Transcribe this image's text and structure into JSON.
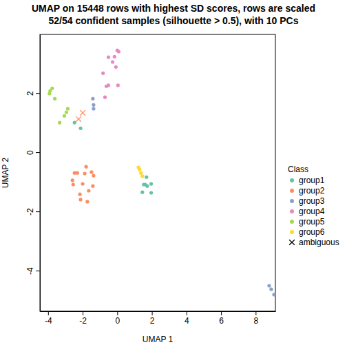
{
  "chart_data": {
    "type": "scatter",
    "title": "UMAP on 15448 rows with highest SD scores, rows are scaled",
    "subtitle": "52/54 confident samples (silhouette > 0.5), with 10 PCs",
    "x_label": "UMAP 1",
    "y_label": "UMAP 2",
    "legend_title": "Class",
    "legend": "right",
    "xlim": [
      -4.47,
      9.14
    ],
    "ylim": [
      -5.37,
      3.98
    ],
    "xticks": [
      -4,
      -2,
      0,
      2,
      4,
      6,
      8
    ],
    "yticks": [
      -4,
      -2,
      0,
      2
    ],
    "series": [
      {
        "name": "group1",
        "color": "#66C2A5",
        "marker": "circle",
        "x": [
          -2.47,
          -2.12,
          1.45,
          1.96,
          1.61,
          1.73,
          1.96,
          1.69,
          1.53
        ],
        "values": [
          1.0,
          0.81,
          -1.35,
          -1.37,
          -1.09,
          -1.14,
          -1.07,
          -0.84,
          -1.09
        ]
      },
      {
        "name": "group2",
        "color": "#FC8D62",
        "marker": "circle",
        "x": [
          -1.8,
          -1.88,
          -1.49,
          -1.37,
          -2.47,
          -2.31,
          -2.55,
          -2.59,
          -2.0,
          -1.41,
          -2.16,
          -1.65,
          -2.12,
          -1.73
        ],
        "values": [
          -0.49,
          -0.72,
          -0.67,
          -0.79,
          -0.7,
          -0.7,
          -1.09,
          -0.95,
          -1.07,
          -1.14,
          -1.42,
          -1.3,
          -1.6,
          -1.67
        ]
      },
      {
        "name": "group3",
        "color": "#8DA0CB",
        "marker": "circle",
        "x": [
          -1.41,
          -1.37,
          -1.37,
          8.78,
          8.9,
          9.06
        ],
        "values": [
          1.81,
          1.6,
          1.47,
          -4.51,
          -4.63,
          -4.81
        ]
      },
      {
        "name": "group4",
        "color": "#E78AC3",
        "marker": "circle",
        "x": [
          0.0,
          0.08,
          -0.51,
          -0.16,
          -0.27,
          -0.08,
          -0.82,
          -0.51,
          -0.63,
          0.04,
          -0.71
        ],
        "values": [
          3.44,
          3.4,
          3.21,
          3.23,
          3.05,
          2.88,
          2.67,
          2.26,
          2.23,
          2.26,
          1.86
        ]
      },
      {
        "name": "group5",
        "color": "#A6D854",
        "marker": "circle",
        "x": [
          -3.76,
          -3.88,
          -3.92,
          -3.61,
          -2.86,
          -2.94,
          -3.06,
          -3.33
        ],
        "values": [
          2.16,
          2.07,
          1.98,
          1.81,
          1.47,
          1.35,
          1.23,
          1.0
        ]
      },
      {
        "name": "group6",
        "color": "#FFD92F",
        "marker": "circle",
        "x": [
          1.22,
          1.29,
          1.37,
          1.45
        ],
        "values": [
          -0.51,
          -0.58,
          -0.7,
          -0.81
        ]
      },
      {
        "name": "ambiguous",
        "color": "#000000",
        "marker": "cross",
        "colors": [
          "#FC8D62",
          "#FC8D62"
        ],
        "x": [
          -2.0,
          -2.24
        ],
        "values": [
          1.33,
          1.12
        ]
      }
    ]
  }
}
